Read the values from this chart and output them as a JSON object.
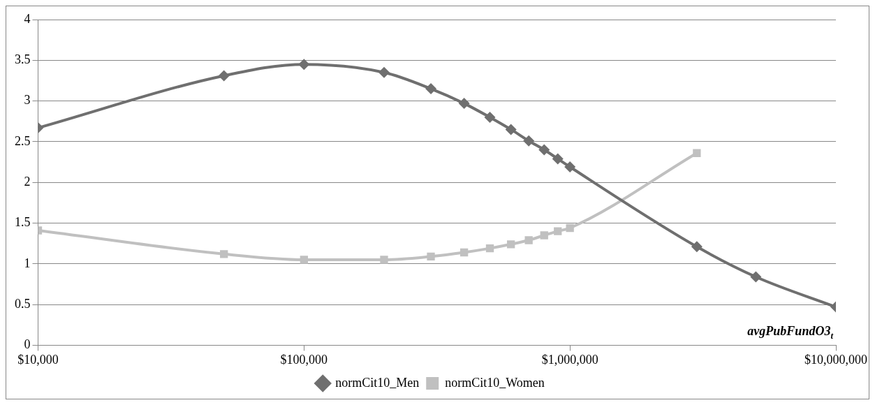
{
  "chart_data": {
    "type": "line",
    "xlabel": "avgPubFundO3$_{t}$",
    "log": "x",
    "grid": "y",
    "legend": "bottom",
    "line_style": "solid",
    "xlim": [
      10000,
      10000000
    ],
    "xticks": [
      {
        "value": 10000,
        "label": "$10,000"
      },
      {
        "value": 100000,
        "label": "$100,000"
      },
      {
        "value": 1000000,
        "label": "$1,000,000"
      },
      {
        "value": 10000000,
        "label": "$10,000,000"
      }
    ],
    "ylim": [
      0,
      4
    ],
    "yticks": [
      0,
      0.5,
      1,
      1.5,
      2,
      2.5,
      3,
      3.5,
      4
    ],
    "series": [
      {
        "name": "normCit10_Men",
        "color": "#6f6f6f",
        "marker": "diamond",
        "x": [
          10000,
          50000,
          100000,
          200000,
          300000,
          400000,
          500000,
          600000,
          700000,
          800000,
          900000,
          1000000,
          3000000,
          5000000,
          10000000
        ],
        "values": [
          2.67,
          3.31,
          3.45,
          3.35,
          3.15,
          2.97,
          2.8,
          2.65,
          2.51,
          2.4,
          2.29,
          2.19,
          1.21,
          0.84,
          0.47
        ]
      },
      {
        "name": "normCit10_Women",
        "color": "#c0c0c0",
        "marker": "square",
        "x": [
          10000,
          50000,
          100000,
          200000,
          300000,
          400000,
          500000,
          600000,
          700000,
          800000,
          900000,
          1000000,
          3000000
        ],
        "values": [
          1.41,
          1.12,
          1.05,
          1.05,
          1.09,
          1.14,
          1.19,
          1.24,
          1.29,
          1.35,
          1.4,
          1.44,
          2.36
        ]
      }
    ]
  }
}
